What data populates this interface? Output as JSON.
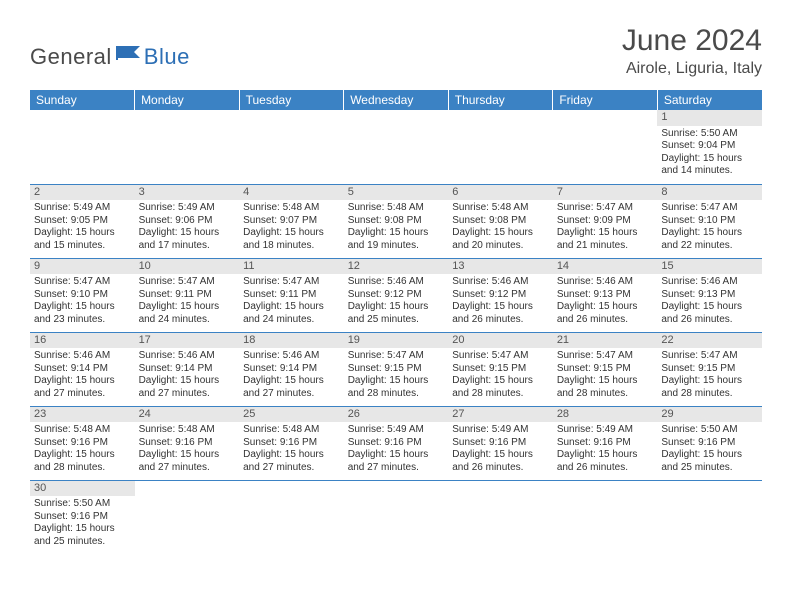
{
  "brand": {
    "general": "General",
    "blue": "Blue",
    "flag_color": "#2d6fb5"
  },
  "title": "June 2024",
  "location": "Airole, Liguria, Italy",
  "header_color": "#3b82c4",
  "daynum_bg": "#e7e7e7",
  "border_color": "#3b82c4",
  "weekdays": [
    "Sunday",
    "Monday",
    "Tuesday",
    "Wednesday",
    "Thursday",
    "Friday",
    "Saturday"
  ],
  "weeks": [
    [
      null,
      null,
      null,
      null,
      null,
      null,
      {
        "n": "1",
        "sr": "5:50 AM",
        "ss": "9:04 PM",
        "dl": "15 hours and 14 minutes."
      }
    ],
    [
      {
        "n": "2",
        "sr": "5:49 AM",
        "ss": "9:05 PM",
        "dl": "15 hours and 15 minutes."
      },
      {
        "n": "3",
        "sr": "5:49 AM",
        "ss": "9:06 PM",
        "dl": "15 hours and 17 minutes."
      },
      {
        "n": "4",
        "sr": "5:48 AM",
        "ss": "9:07 PM",
        "dl": "15 hours and 18 minutes."
      },
      {
        "n": "5",
        "sr": "5:48 AM",
        "ss": "9:08 PM",
        "dl": "15 hours and 19 minutes."
      },
      {
        "n": "6",
        "sr": "5:48 AM",
        "ss": "9:08 PM",
        "dl": "15 hours and 20 minutes."
      },
      {
        "n": "7",
        "sr": "5:47 AM",
        "ss": "9:09 PM",
        "dl": "15 hours and 21 minutes."
      },
      {
        "n": "8",
        "sr": "5:47 AM",
        "ss": "9:10 PM",
        "dl": "15 hours and 22 minutes."
      }
    ],
    [
      {
        "n": "9",
        "sr": "5:47 AM",
        "ss": "9:10 PM",
        "dl": "15 hours and 23 minutes."
      },
      {
        "n": "10",
        "sr": "5:47 AM",
        "ss": "9:11 PM",
        "dl": "15 hours and 24 minutes."
      },
      {
        "n": "11",
        "sr": "5:47 AM",
        "ss": "9:11 PM",
        "dl": "15 hours and 24 minutes."
      },
      {
        "n": "12",
        "sr": "5:46 AM",
        "ss": "9:12 PM",
        "dl": "15 hours and 25 minutes."
      },
      {
        "n": "13",
        "sr": "5:46 AM",
        "ss": "9:12 PM",
        "dl": "15 hours and 26 minutes."
      },
      {
        "n": "14",
        "sr": "5:46 AM",
        "ss": "9:13 PM",
        "dl": "15 hours and 26 minutes."
      },
      {
        "n": "15",
        "sr": "5:46 AM",
        "ss": "9:13 PM",
        "dl": "15 hours and 26 minutes."
      }
    ],
    [
      {
        "n": "16",
        "sr": "5:46 AM",
        "ss": "9:14 PM",
        "dl": "15 hours and 27 minutes."
      },
      {
        "n": "17",
        "sr": "5:46 AM",
        "ss": "9:14 PM",
        "dl": "15 hours and 27 minutes."
      },
      {
        "n": "18",
        "sr": "5:46 AM",
        "ss": "9:14 PM",
        "dl": "15 hours and 27 minutes."
      },
      {
        "n": "19",
        "sr": "5:47 AM",
        "ss": "9:15 PM",
        "dl": "15 hours and 28 minutes."
      },
      {
        "n": "20",
        "sr": "5:47 AM",
        "ss": "9:15 PM",
        "dl": "15 hours and 28 minutes."
      },
      {
        "n": "21",
        "sr": "5:47 AM",
        "ss": "9:15 PM",
        "dl": "15 hours and 28 minutes."
      },
      {
        "n": "22",
        "sr": "5:47 AM",
        "ss": "9:15 PM",
        "dl": "15 hours and 28 minutes."
      }
    ],
    [
      {
        "n": "23",
        "sr": "5:48 AM",
        "ss": "9:16 PM",
        "dl": "15 hours and 28 minutes."
      },
      {
        "n": "24",
        "sr": "5:48 AM",
        "ss": "9:16 PM",
        "dl": "15 hours and 27 minutes."
      },
      {
        "n": "25",
        "sr": "5:48 AM",
        "ss": "9:16 PM",
        "dl": "15 hours and 27 minutes."
      },
      {
        "n": "26",
        "sr": "5:49 AM",
        "ss": "9:16 PM",
        "dl": "15 hours and 27 minutes."
      },
      {
        "n": "27",
        "sr": "5:49 AM",
        "ss": "9:16 PM",
        "dl": "15 hours and 26 minutes."
      },
      {
        "n": "28",
        "sr": "5:49 AM",
        "ss": "9:16 PM",
        "dl": "15 hours and 26 minutes."
      },
      {
        "n": "29",
        "sr": "5:50 AM",
        "ss": "9:16 PM",
        "dl": "15 hours and 25 minutes."
      }
    ],
    [
      {
        "n": "30",
        "sr": "5:50 AM",
        "ss": "9:16 PM",
        "dl": "15 hours and 25 minutes."
      },
      null,
      null,
      null,
      null,
      null,
      null
    ]
  ],
  "labels": {
    "sunrise": "Sunrise:",
    "sunset": "Sunset:",
    "daylight": "Daylight:"
  }
}
